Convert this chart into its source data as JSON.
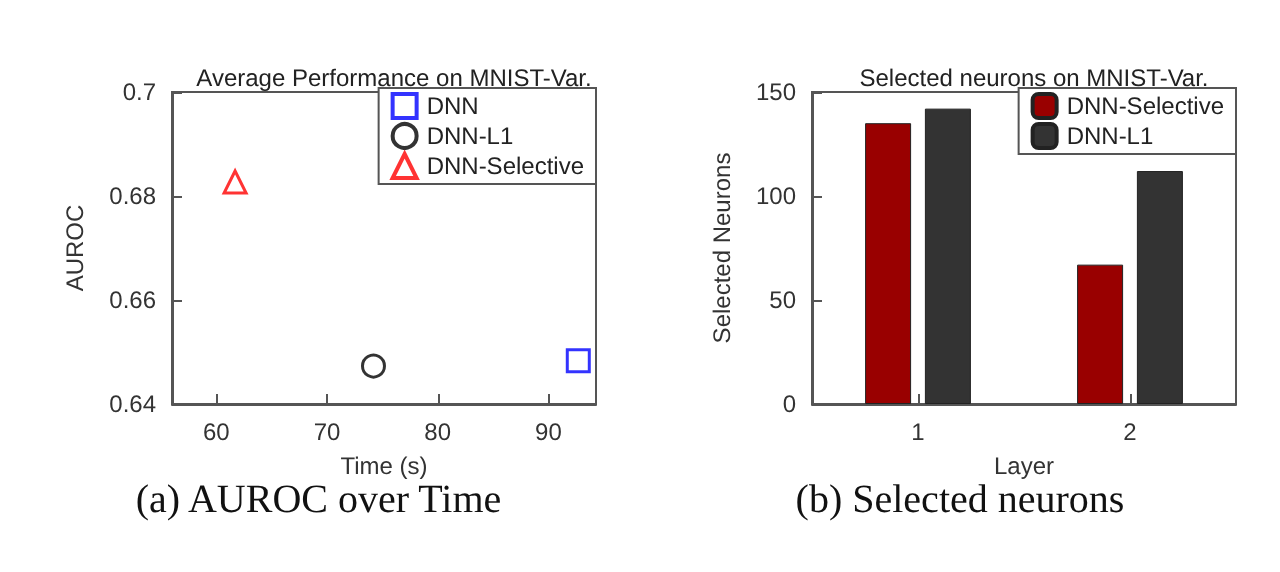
{
  "chart_data": [
    {
      "type": "scatter",
      "title": "Average Performance on MNIST-Var.",
      "xlabel": "Time (s)",
      "ylabel": "AUROC",
      "xlim": [
        56,
        94.3
      ],
      "xticks": [
        60,
        70,
        80,
        90
      ],
      "ylim": [
        0.64,
        0.7
      ],
      "yticks": [
        0.64,
        0.66,
        0.68,
        0.7
      ],
      "grid": false,
      "legend": "top right",
      "annotations": [
        "(a) AUROC over Time"
      ],
      "series": [
        {
          "name": "DNN",
          "color": "#0000ff",
          "marker": "square",
          "x": [
            92.7
          ],
          "values": [
            0.6483
          ]
        },
        {
          "name": "DNN-L1",
          "color": "#000000",
          "marker": "circle",
          "x": [
            74.2
          ],
          "values": [
            0.6473
          ]
        },
        {
          "name": "DNN-Selective",
          "color": "#ff0000",
          "marker": "triangle",
          "x": [
            61.7
          ],
          "values": [
            0.6827
          ]
        }
      ]
    },
    {
      "type": "bar",
      "title": "Selected neurons on MNIST-Var.",
      "xlabel": "Layer",
      "ylabel": "Selected Neurons",
      "categories": [
        "1",
        "2"
      ],
      "ylim": [
        0,
        150
      ],
      "yticks": [
        0,
        50,
        100,
        150
      ],
      "grid": false,
      "legend": "top right",
      "annotations": [
        "(b) Selected neurons"
      ],
      "series": [
        {
          "name": "DNN-Selective",
          "color": "#990000",
          "values": [
            135,
            67
          ]
        },
        {
          "name": "DNN-L1",
          "color": "#333333",
          "values": [
            142,
            112
          ]
        }
      ]
    }
  ]
}
